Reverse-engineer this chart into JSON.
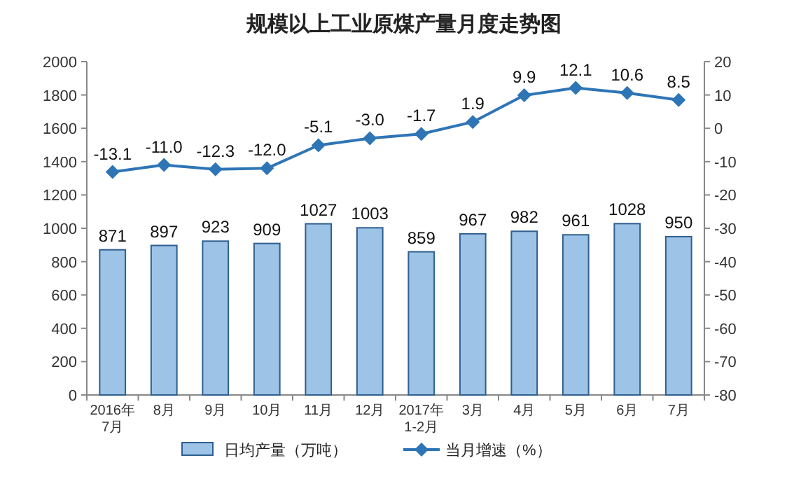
{
  "chart_data": {
    "type": "bar",
    "title": "规模以上工业原煤产量月度走势图",
    "categories": [
      "2016年\n7月",
      "8月",
      "9月",
      "10月",
      "11月",
      "12月",
      "2017年\n1-2月",
      "3月",
      "4月",
      "5月",
      "6月",
      "7月"
    ],
    "series": [
      {
        "name": "日均产量（万吨）",
        "color": "#9dc3e6",
        "values": [
          871,
          897,
          923,
          909,
          1027,
          1003,
          859,
          967,
          982,
          961,
          1028,
          950
        ]
      },
      {
        "name": "当月增速（%）",
        "type": "line",
        "axis": "y2",
        "color": "#2e75b6",
        "values": [
          -13.1,
          -11.0,
          -12.3,
          -12.0,
          -5.1,
          -3.0,
          -1.7,
          1.9,
          9.9,
          12.1,
          10.6,
          8.5
        ],
        "value_labels": [
          "-13.1",
          "-11.0",
          "-12.3",
          "-12.0",
          "-5.1",
          "-3.0",
          "-1.7",
          "1.9",
          "9.9",
          "12.1",
          "10.6",
          "8.5"
        ]
      }
    ],
    "ylim": [
      0,
      2000
    ],
    "yticks": [
      0,
      200,
      400,
      600,
      800,
      1000,
      1200,
      1400,
      1600,
      1800,
      2000
    ],
    "y2lim": [
      -80,
      20
    ],
    "y2ticks": [
      -80,
      -70,
      -60,
      -50,
      -40,
      -30,
      -20,
      -10,
      0,
      10,
      20
    ],
    "data_labels": true,
    "legend": "bottom",
    "marker": "diamond"
  }
}
